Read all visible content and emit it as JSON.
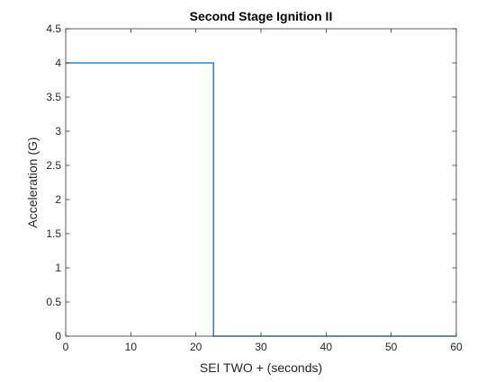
{
  "chart_data": {
    "type": "line",
    "title": "Second Stage Ignition II",
    "xlabel": "SEI TWO + (seconds)",
    "ylabel": "Acceleration (G)",
    "xlim": [
      0,
      60
    ],
    "ylim": [
      0,
      4.5
    ],
    "xticks": [
      0,
      10,
      20,
      30,
      40,
      50,
      60
    ],
    "xtick_labels": [
      "0",
      "10",
      "20",
      "30",
      "40",
      "50",
      "60"
    ],
    "yticks": [
      0,
      0.5,
      1,
      1.5,
      2,
      2.5,
      3,
      3.5,
      4,
      4.5
    ],
    "ytick_labels": [
      "0",
      "0.5",
      "1",
      "1.5",
      "2",
      "2.5",
      "3",
      "3.5",
      "4",
      "4.5"
    ],
    "grid": false,
    "box": true,
    "series": [
      {
        "color": "#0072BD",
        "x": [
          0,
          22.7,
          22.7,
          60
        ],
        "y": [
          4,
          4,
          0,
          0
        ]
      }
    ]
  }
}
